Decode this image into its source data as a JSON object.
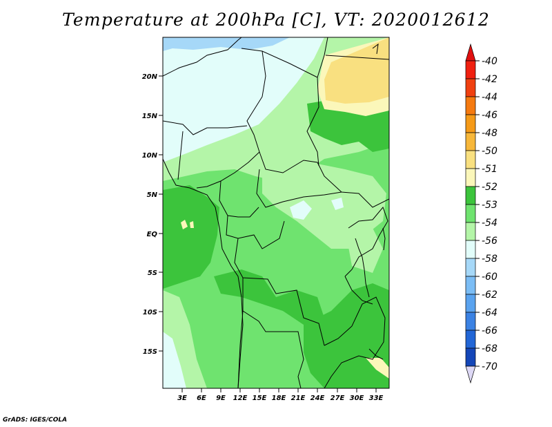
{
  "title": "Temperature at 200hPa [C], VT: 2020012612",
  "credit": "GrADS: IGES/COLA",
  "map": {
    "lat_labels": [
      "20N",
      "15N",
      "10N",
      "5N",
      "EQ",
      "5S",
      "10S",
      "15S"
    ],
    "lon_labels": [
      "3E",
      "6E",
      "9E",
      "12E",
      "15E",
      "18E",
      "21E",
      "24E",
      "27E",
      "30E",
      "33E"
    ]
  },
  "colorbar": {
    "levels": [
      {
        "label": "-40",
        "color": "#f02010"
      },
      {
        "label": "-42",
        "color": "#f04010"
      },
      {
        "label": "-44",
        "color": "#f57a10"
      },
      {
        "label": "-46",
        "color": "#f59a18"
      },
      {
        "label": "-48",
        "color": "#f7b73a"
      },
      {
        "label": "-50",
        "color": "#f9e080"
      },
      {
        "label": "-51",
        "color": "#fbf7ba"
      },
      {
        "label": "-52",
        "color": "#3cc43c"
      },
      {
        "label": "-53",
        "color": "#6fe36f"
      },
      {
        "label": "-54",
        "color": "#b4f5a8"
      },
      {
        "label": "-56",
        "color": "#e2fdfa"
      },
      {
        "label": "-58",
        "color": "#a6d8f8"
      },
      {
        "label": "-60",
        "color": "#7bbdf5"
      },
      {
        "label": "-62",
        "color": "#5aa3ef"
      },
      {
        "label": "-64",
        "color": "#3b82e3"
      },
      {
        "label": "-66",
        "color": "#2266d6"
      },
      {
        "label": "-68",
        "color": "#1446b8"
      },
      {
        "label": "-70",
        "color": "#0c1a82"
      }
    ],
    "top_color": "#e01010",
    "bottom_color": "#ddd8f5"
  }
}
